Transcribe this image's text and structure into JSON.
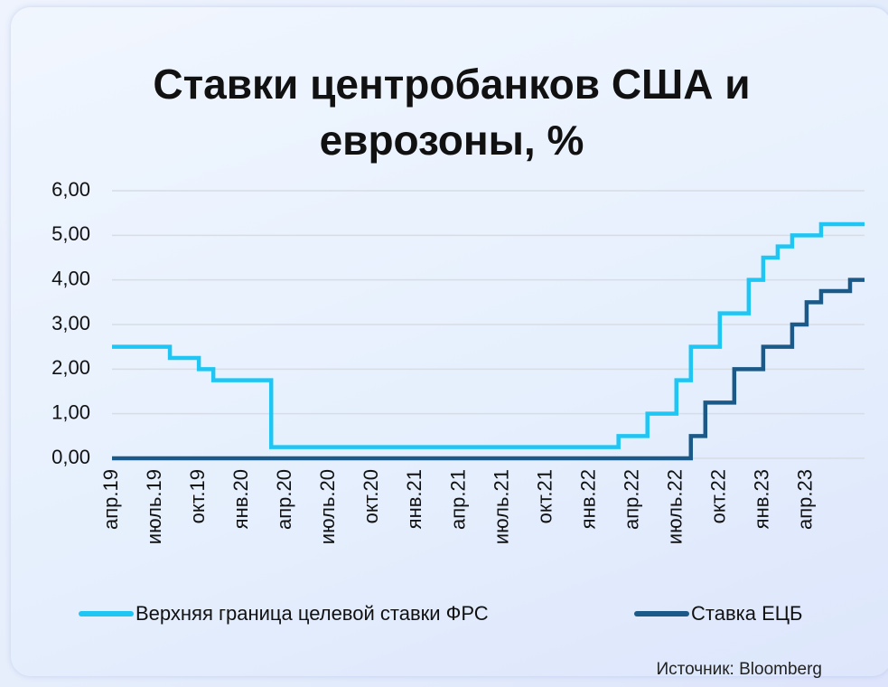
{
  "chart_data": {
    "type": "line",
    "step": true,
    "title": "Ставки центробанков США и еврозоны, %",
    "source": "Источник: Bloomberg",
    "categories": [
      "апр.19",
      null,
      null,
      "июль.19",
      null,
      null,
      "окт.19",
      null,
      null,
      "янв.20",
      null,
      null,
      "апр.20",
      null,
      null,
      "июль.20",
      null,
      null,
      "окт.20",
      null,
      null,
      "янв.21",
      null,
      null,
      "апр.21",
      null,
      null,
      "июль.21",
      null,
      null,
      "окт.21",
      null,
      null,
      "янв.22",
      null,
      null,
      "апр.22",
      null,
      null,
      "июль.22",
      null,
      null,
      "окт.22",
      null,
      null,
      "янв.23",
      null,
      null,
      "апр.23",
      null,
      null,
      null
    ],
    "series": [
      {
        "name": "Верхняя граница целевой ставки ФРС",
        "color": "#1fc6f4",
        "values": [
          2.5,
          2.5,
          2.5,
          2.5,
          2.25,
          2.25,
          2.0,
          1.75,
          1.75,
          1.75,
          1.75,
          0.25,
          0.25,
          0.25,
          0.25,
          0.25,
          0.25,
          0.25,
          0.25,
          0.25,
          0.25,
          0.25,
          0.25,
          0.25,
          0.25,
          0.25,
          0.25,
          0.25,
          0.25,
          0.25,
          0.25,
          0.25,
          0.25,
          0.25,
          0.25,
          0.5,
          0.5,
          1.0,
          1.0,
          1.75,
          2.5,
          2.5,
          3.25,
          3.25,
          4.0,
          4.5,
          4.75,
          5.0,
          5.0,
          5.25,
          5.25,
          5.25
        ]
      },
      {
        "name": "Ставка ЕЦБ",
        "color": "#1b5a88",
        "values": [
          0,
          0,
          0,
          0,
          0,
          0,
          0,
          0,
          0,
          0,
          0,
          0,
          0,
          0,
          0,
          0,
          0,
          0,
          0,
          0,
          0,
          0,
          0,
          0,
          0,
          0,
          0,
          0,
          0,
          0,
          0,
          0,
          0,
          0,
          0,
          0,
          0,
          0,
          0,
          0,
          0.5,
          1.25,
          1.25,
          2.0,
          2.0,
          2.5,
          2.5,
          3.0,
          3.5,
          3.75,
          3.75,
          4.0
        ]
      }
    ],
    "ylim": [
      0,
      6
    ],
    "yticks": [
      {
        "value": 0,
        "label": "0,00"
      },
      {
        "value": 1,
        "label": "1,00"
      },
      {
        "value": 2,
        "label": "2,00"
      },
      {
        "value": 3,
        "label": "3,00"
      },
      {
        "value": 4,
        "label": "4,00"
      },
      {
        "value": 5,
        "label": "5,00"
      },
      {
        "value": 6,
        "label": "6,00"
      }
    ],
    "grid": true,
    "legend": "bottom"
  }
}
